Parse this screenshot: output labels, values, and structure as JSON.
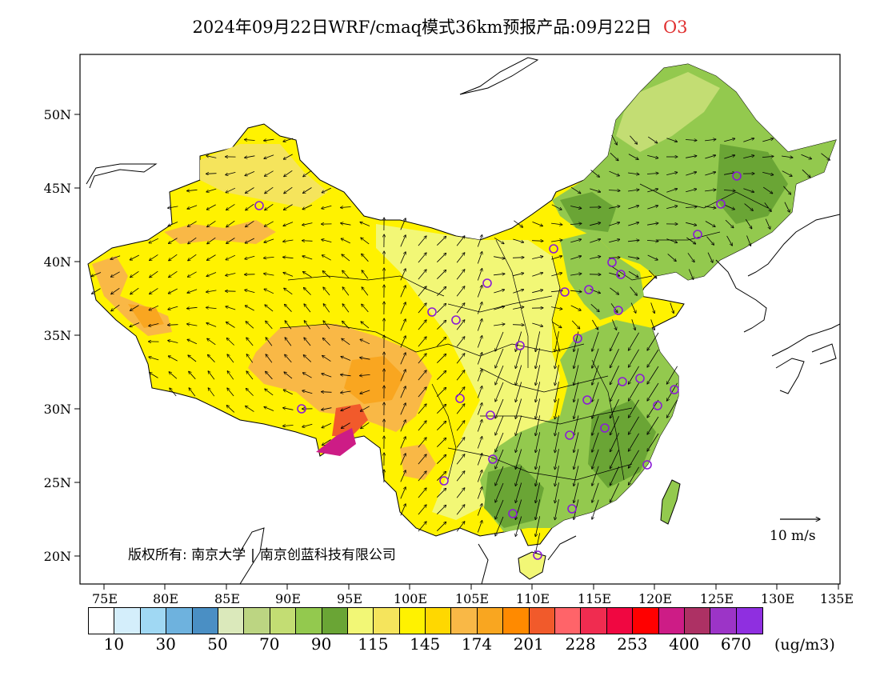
{
  "header": {
    "title": "2024年09月22日WRF/cmaq模式36km预报产品:09月22日",
    "species": "O3",
    "species_color": "#e03030"
  },
  "axes": {
    "lon_ticks": [
      "75E",
      "80E",
      "85E",
      "90E",
      "95E",
      "100E",
      "105E",
      "110E",
      "115E",
      "120E",
      "125E",
      "130E",
      "135E"
    ],
    "lat_ticks": [
      "50N",
      "45N",
      "40N",
      "35N",
      "30N",
      "25N",
      "20N"
    ]
  },
  "copyright": {
    "label": "版权所有:",
    "org1": "南京大学",
    "org2": "南京创蓝科技有限公司"
  },
  "vector_key": {
    "label": "10 m/s"
  },
  "colorbar": {
    "colors": [
      "#ffffff",
      "#d4eefb",
      "#a0d8f3",
      "#6eb2de",
      "#4a8fc4",
      "#dbe9bb",
      "#bcd582",
      "#c3dd73",
      "#93c94e",
      "#6aa535",
      "#f2f776",
      "#f5e45c",
      "#fff200",
      "#ffd800",
      "#f9b846",
      "#f9a620",
      "#ff8a00",
      "#f15a2b",
      "#ff6469",
      "#f02c50",
      "#f00741",
      "#ff0000",
      "#cd1c86",
      "#ad3164",
      "#9c34c7",
      "#8f2fe0"
    ],
    "labels": [
      "10",
      "30",
      "50",
      "70",
      "90",
      "115",
      "145",
      "174",
      "201",
      "228",
      "253",
      "400",
      "670"
    ],
    "units": "(ug/m3)"
  }
}
